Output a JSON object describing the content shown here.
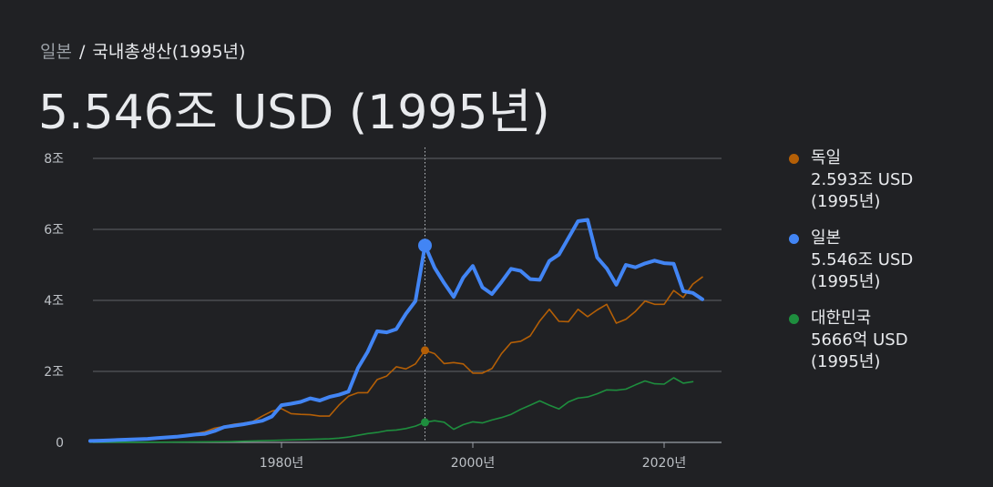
{
  "breadcrumb": {
    "root": "일본",
    "separator": "/",
    "current": "국내총생산(1995년)"
  },
  "headline": "5.546조 USD (1995년)",
  "legend": [
    {
      "name": "독일",
      "value": "2.593조 USD",
      "year": "(1995년)",
      "color": "#b45f06"
    },
    {
      "name": "일본",
      "value": "5.546조 USD",
      "year": "(1995년)",
      "color": "#4285f4"
    },
    {
      "name": "대한민국",
      "value": "5666억 USD",
      "year": "(1995년)",
      "color": "#1e8e3e"
    }
  ],
  "chart_data": {
    "type": "line",
    "x_tick_labels": [
      "1980년",
      "2000년",
      "2020년"
    ],
    "x_ticks": [
      1980,
      2000,
      2020
    ],
    "y_tick_labels": [
      "0",
      "2조",
      "4조",
      "6조",
      "8조"
    ],
    "y_ticks": [
      0,
      2,
      4,
      6,
      8
    ],
    "xlim": [
      1958,
      2026
    ],
    "ylim": [
      0,
      8
    ],
    "y_unit": "조 USD",
    "highlight_x": 1995,
    "grid": true,
    "legend_position": "right",
    "series": [
      {
        "name": "일본",
        "color": "#4285f4",
        "x": [
          1960,
          1961,
          1962,
          1963,
          1964,
          1965,
          1966,
          1967,
          1968,
          1969,
          1970,
          1971,
          1972,
          1973,
          1974,
          1975,
          1976,
          1977,
          1978,
          1979,
          1980,
          1981,
          1982,
          1983,
          1984,
          1985,
          1986,
          1987,
          1988,
          1989,
          1990,
          1991,
          1992,
          1993,
          1994,
          1995,
          1996,
          1997,
          1998,
          1999,
          2000,
          2001,
          2002,
          2003,
          2004,
          2005,
          2006,
          2007,
          2008,
          2009,
          2010,
          2011,
          2012,
          2013,
          2014,
          2015,
          2016,
          2017,
          2018,
          2019,
          2020,
          2021,
          2022,
          2023,
          2024
        ],
        "values": [
          0.04,
          0.05,
          0.06,
          0.07,
          0.08,
          0.09,
          0.1,
          0.12,
          0.14,
          0.16,
          0.19,
          0.22,
          0.24,
          0.32,
          0.43,
          0.47,
          0.51,
          0.56,
          0.61,
          0.73,
          1.05,
          1.09,
          1.14,
          1.24,
          1.18,
          1.28,
          1.34,
          1.43,
          2.1,
          2.55,
          3.13,
          3.1,
          3.19,
          3.62,
          3.98,
          5.546,
          4.92,
          4.49,
          4.1,
          4.64,
          4.97,
          4.37,
          4.18,
          4.52,
          4.89,
          4.83,
          4.6,
          4.58,
          5.11,
          5.29,
          5.76,
          6.23,
          6.27,
          5.21,
          4.9,
          4.44,
          5.0,
          4.93,
          5.04,
          5.12,
          5.05,
          5.03,
          4.26,
          4.21,
          4.03
        ]
      },
      {
        "name": "독일",
        "color": "#b45f06",
        "x": [
          1970,
          1971,
          1972,
          1973,
          1974,
          1975,
          1976,
          1977,
          1978,
          1979,
          1980,
          1981,
          1982,
          1983,
          1984,
          1985,
          1986,
          1987,
          1988,
          1989,
          1990,
          1991,
          1992,
          1993,
          1994,
          1995,
          1996,
          1997,
          1998,
          1999,
          2000,
          2001,
          2002,
          2003,
          2004,
          2005,
          2006,
          2007,
          2008,
          2009,
          2010,
          2011,
          2012,
          2013,
          2014,
          2015,
          2016,
          2017,
          2018,
          2019,
          2020,
          2021,
          2022,
          2023,
          2024
        ],
        "values": [
          0.21,
          0.25,
          0.3,
          0.4,
          0.45,
          0.51,
          0.54,
          0.59,
          0.74,
          0.88,
          0.95,
          0.81,
          0.79,
          0.78,
          0.74,
          0.74,
          1.05,
          1.3,
          1.4,
          1.4,
          1.77,
          1.87,
          2.13,
          2.07,
          2.21,
          2.593,
          2.5,
          2.22,
          2.25,
          2.21,
          1.95,
          1.95,
          2.08,
          2.5,
          2.81,
          2.85,
          3.0,
          3.42,
          3.75,
          3.41,
          3.4,
          3.75,
          3.54,
          3.73,
          3.89,
          3.36,
          3.47,
          3.69,
          3.98,
          3.89,
          3.89,
          4.28,
          4.08,
          4.46,
          4.66
        ]
      },
      {
        "name": "대한민국",
        "color": "#1e8e3e",
        "x": [
          1960,
          1965,
          1970,
          1975,
          1980,
          1985,
          1986,
          1987,
          1988,
          1989,
          1990,
          1991,
          1992,
          1993,
          1994,
          1995,
          1996,
          1997,
          1998,
          1999,
          2000,
          2001,
          2002,
          2003,
          2004,
          2005,
          2006,
          2007,
          2008,
          2009,
          2010,
          2011,
          2012,
          2013,
          2014,
          2015,
          2016,
          2017,
          2018,
          2019,
          2020,
          2021,
          2022,
          2023
        ],
        "values": [
          0.004,
          0.003,
          0.009,
          0.022,
          0.065,
          0.1,
          0.12,
          0.15,
          0.2,
          0.25,
          0.28,
          0.33,
          0.35,
          0.39,
          0.46,
          0.5666,
          0.61,
          0.57,
          0.37,
          0.5,
          0.58,
          0.55,
          0.63,
          0.7,
          0.79,
          0.93,
          1.05,
          1.17,
          1.05,
          0.94,
          1.14,
          1.25,
          1.28,
          1.37,
          1.48,
          1.47,
          1.5,
          1.62,
          1.73,
          1.65,
          1.64,
          1.82,
          1.67,
          1.71
        ]
      }
    ]
  }
}
